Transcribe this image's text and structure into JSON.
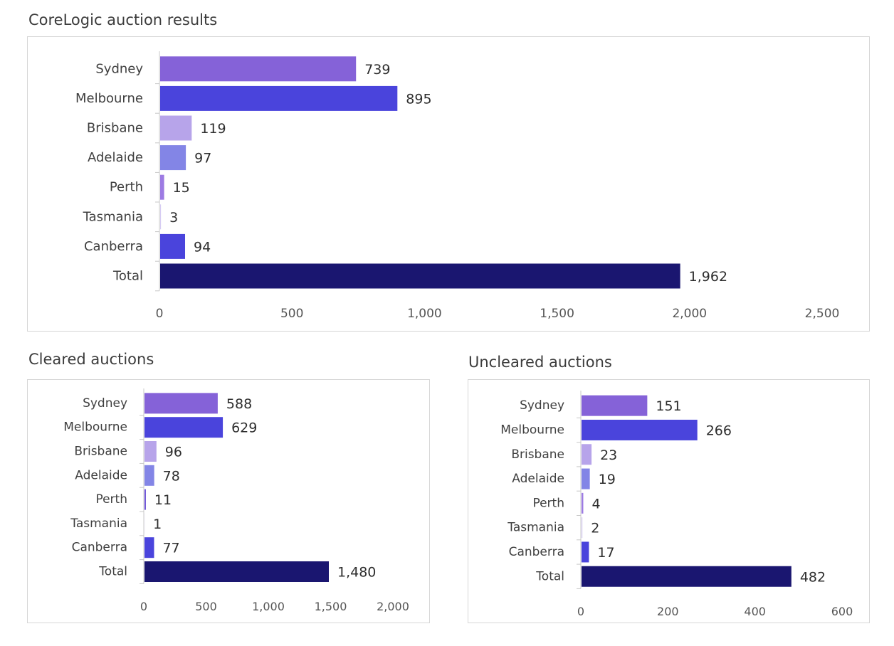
{
  "chart_data": [
    {
      "id": "main",
      "type": "bar",
      "orientation": "horizontal",
      "title": "CoreLogic auction results",
      "categories": [
        "Sydney",
        "Melbourne",
        "Brisbane",
        "Adelaide",
        "Perth",
        "Tasmania",
        "Canberra",
        "Total"
      ],
      "values": [
        739,
        895,
        119,
        97,
        15,
        3,
        94,
        1962
      ],
      "value_labels": [
        "739",
        "895",
        "119",
        "97",
        "15",
        "3",
        "94",
        "1,962"
      ],
      "xlim": [
        0,
        2500
      ],
      "xticks": [
        0,
        500,
        1000,
        1500,
        2000,
        2500
      ],
      "xtick_labels": [
        "0",
        "500",
        "1,000",
        "1,500",
        "2,000",
        "2,500"
      ],
      "bar_colors": [
        "#8562d8",
        "#4a44dc",
        "#b7a4ea",
        "#8385e6",
        "#9d7be3",
        "#d6ccf3",
        "#4a44dc",
        "#1a1670"
      ],
      "xlabel": "",
      "ylabel": "",
      "grid": false,
      "legend": "none"
    },
    {
      "id": "cleared",
      "type": "bar",
      "orientation": "horizontal",
      "title": "Cleared auctions",
      "categories": [
        "Sydney",
        "Melbourne",
        "Brisbane",
        "Adelaide",
        "Perth",
        "Tasmania",
        "Canberra",
        "Total"
      ],
      "values": [
        588,
        629,
        96,
        78,
        11,
        1,
        77,
        1480
      ],
      "value_labels": [
        "588",
        "629",
        "96",
        "78",
        "11",
        "1",
        "77",
        "1,480"
      ],
      "xlim": [
        0,
        2000
      ],
      "xticks": [
        0,
        500,
        1000,
        1500,
        2000
      ],
      "xtick_labels": [
        "0",
        "500",
        "1,000",
        "1,500",
        "2,000"
      ],
      "bar_colors": [
        "#8562d8",
        "#4a44dc",
        "#b7a4ea",
        "#8385e6",
        "#6a4fd6",
        "#d6ccf3",
        "#4a44dc",
        "#1a1670"
      ],
      "xlabel": "",
      "ylabel": "",
      "grid": false,
      "legend": "none"
    },
    {
      "id": "uncleared",
      "type": "bar",
      "orientation": "horizontal",
      "title": "Uncleared auctions",
      "categories": [
        "Sydney",
        "Melbourne",
        "Brisbane",
        "Adelaide",
        "Perth",
        "Tasmania",
        "Canberra",
        "Total"
      ],
      "values": [
        151,
        266,
        23,
        19,
        4,
        2,
        17,
        482
      ],
      "value_labels": [
        "151",
        "266",
        "23",
        "19",
        "4",
        "2",
        "17",
        "482"
      ],
      "xlim": [
        0,
        600
      ],
      "xticks": [
        0,
        200,
        400,
        600
      ],
      "xtick_labels": [
        "0",
        "200",
        "400",
        "600"
      ],
      "bar_colors": [
        "#8562d8",
        "#4a44dc",
        "#b7a4ea",
        "#8385e6",
        "#9d7be3",
        "#d6ccf3",
        "#4a44dc",
        "#1a1670"
      ],
      "xlabel": "",
      "ylabel": "",
      "grid": false,
      "legend": "none"
    }
  ]
}
